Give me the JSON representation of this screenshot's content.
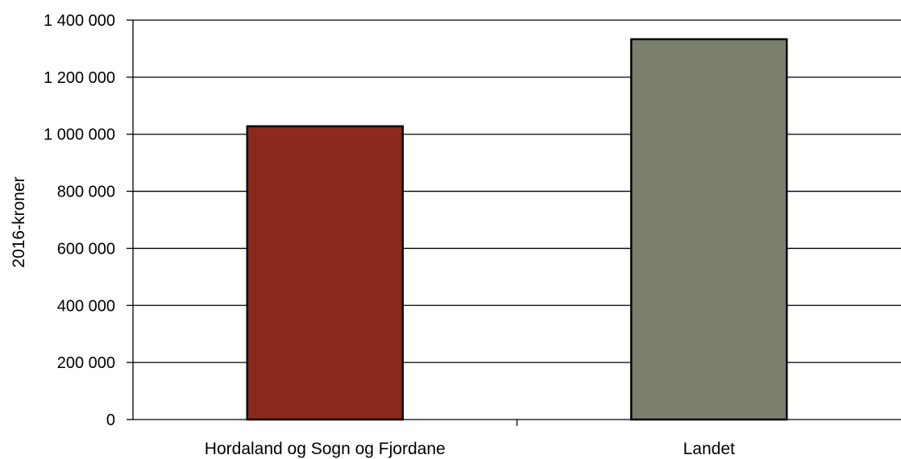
{
  "chart_data": {
    "type": "bar",
    "categories": [
      "Hordaland og Sogn og Fjordane",
      "Landet"
    ],
    "values": [
      1028000,
      1333000
    ],
    "bar_colors": [
      "#8B2A1C",
      "#7B7F6E"
    ],
    "bar_outline": "#000000",
    "title": "",
    "xlabel": "",
    "ylabel": "2016-kroner",
    "ylim": [
      0,
      1400000
    ],
    "y_ticks": [
      0,
      200000,
      400000,
      600000,
      800000,
      1000000,
      1200000,
      1400000
    ],
    "y_tick_labels": [
      "0",
      "200 000",
      "400 000",
      "600 000",
      "800 000",
      "1 000 000",
      "1 200 000",
      "1 400 000"
    ],
    "grid": true,
    "legend": "none"
  }
}
